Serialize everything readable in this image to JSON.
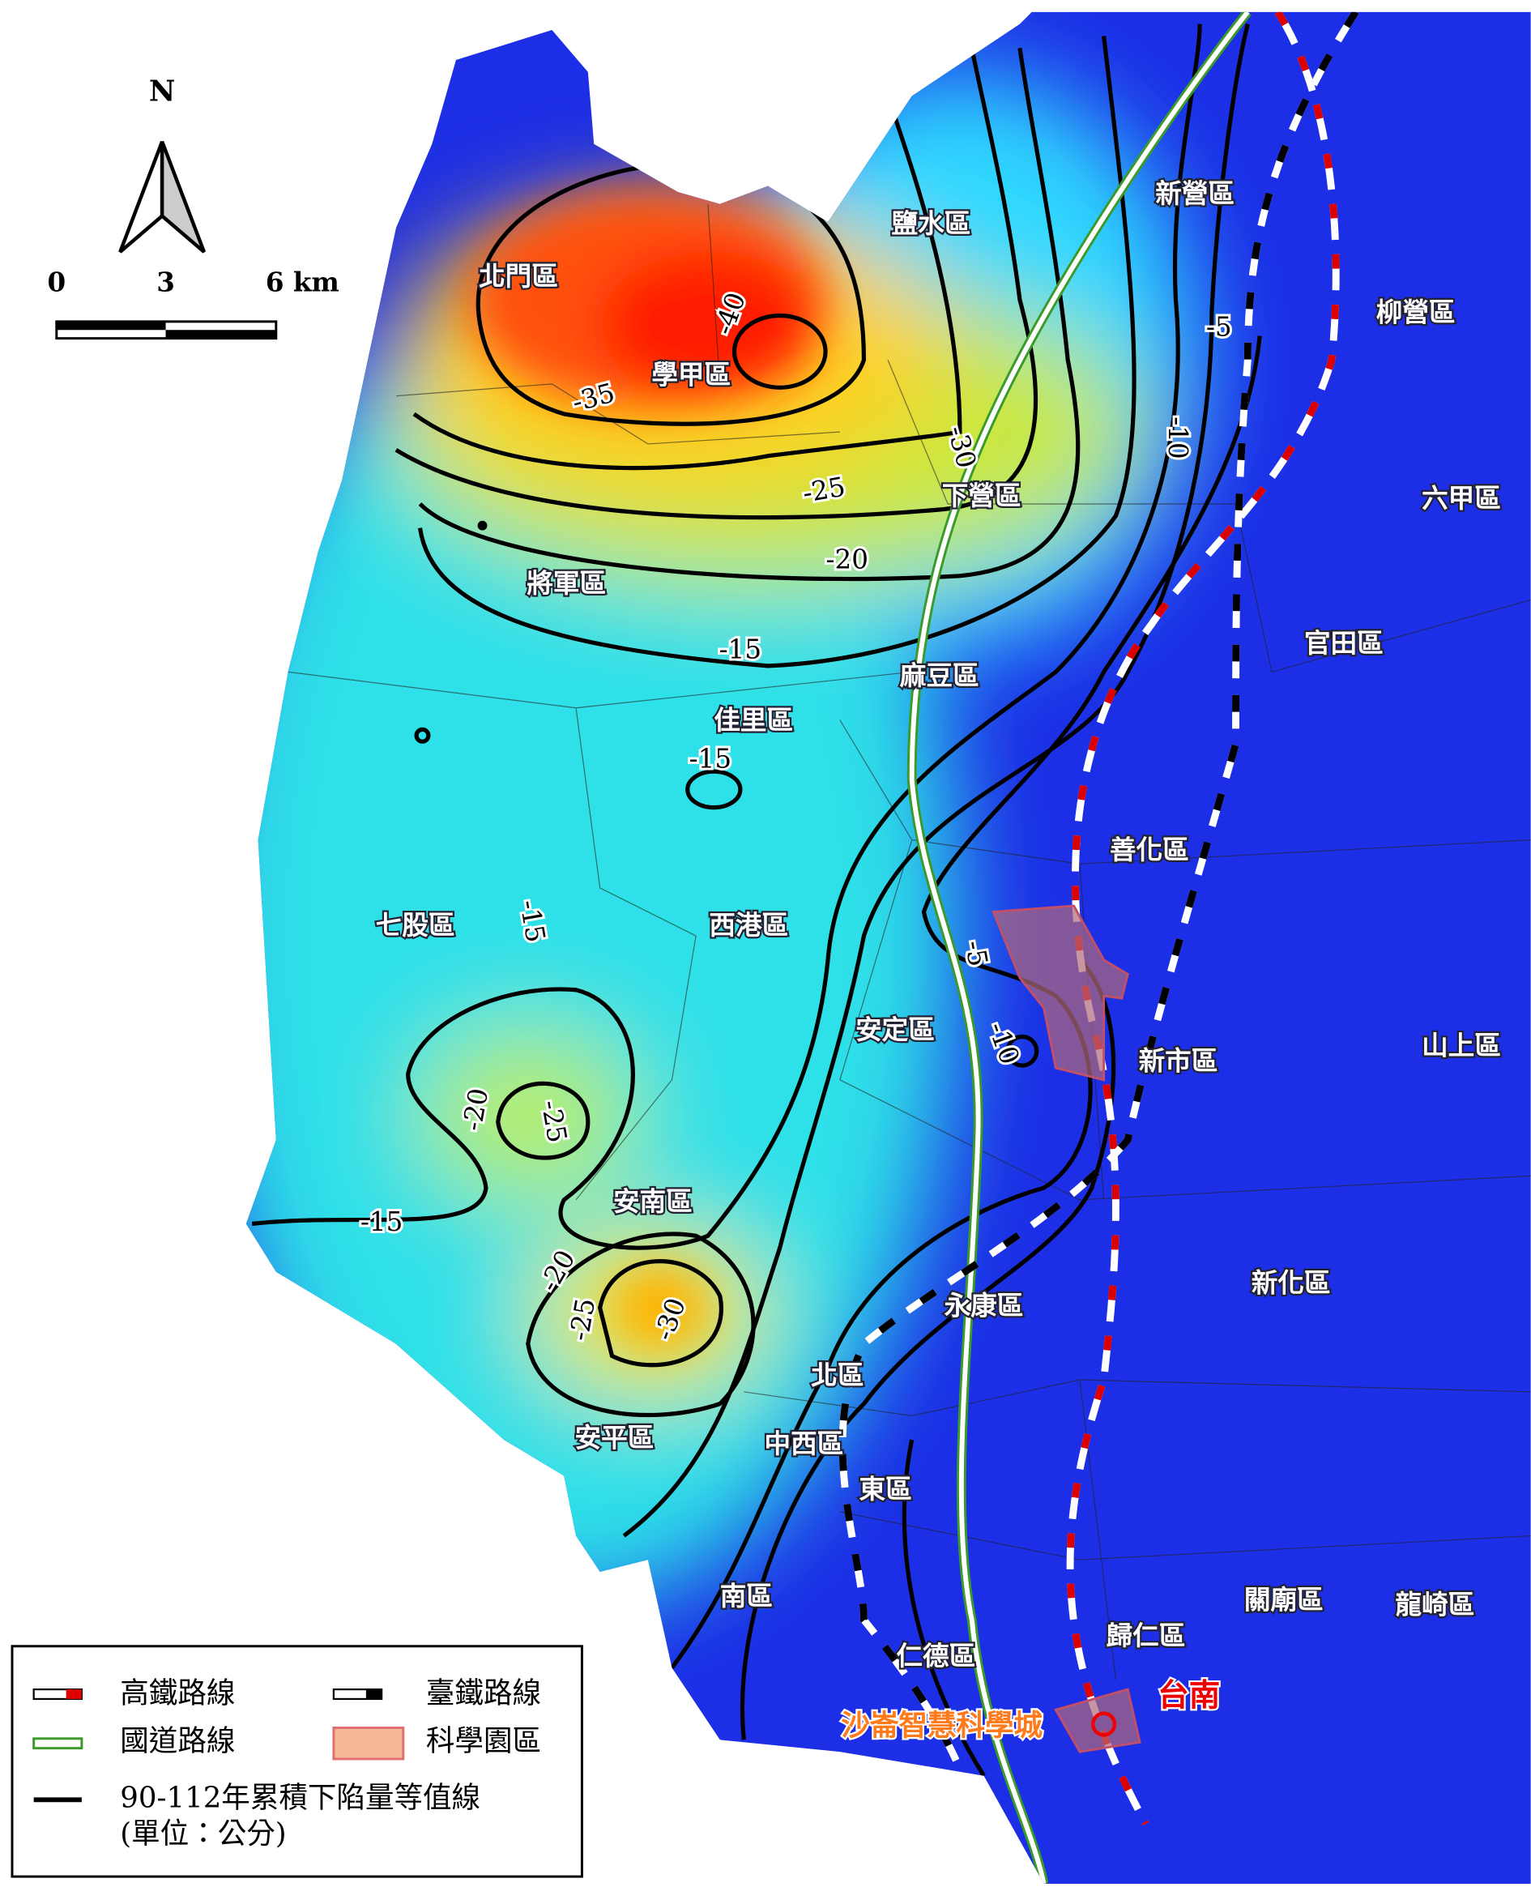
{
  "north_label": "N",
  "scale_bar": {
    "labels": [
      "0",
      "3",
      "6 km"
    ]
  },
  "districts": [
    "北門區",
    "學甲區",
    "鹽水區",
    "新營區",
    "柳營區",
    "下營區",
    "六甲區",
    "將軍區",
    "官田區",
    "麻豆區",
    "佳里區",
    "善化區",
    "七股區",
    "西港區",
    "安定區",
    "新市區",
    "山上區",
    "安南區",
    "新化區",
    "永康區",
    "北區",
    "中西區",
    "安平區",
    "東區",
    "南區",
    "關廟區",
    "龍崎區",
    "歸仁區",
    "仁德區"
  ],
  "contour_labels": [
    -40,
    -35,
    -30,
    -25,
    -20,
    -15,
    -15,
    -15,
    -5,
    -10,
    -5,
    -10,
    -20,
    -25,
    -15,
    -20,
    -25,
    -30
  ],
  "annotations": {
    "city": "台南",
    "science_city": "沙崙智慧科學城"
  },
  "legend": {
    "items": [
      "高鐵路線",
      "臺鐵路線",
      "國道路線",
      "科學園區",
      "90-112年累積下陷量等值線"
    ],
    "unit_note": "(單位：公分)"
  }
}
